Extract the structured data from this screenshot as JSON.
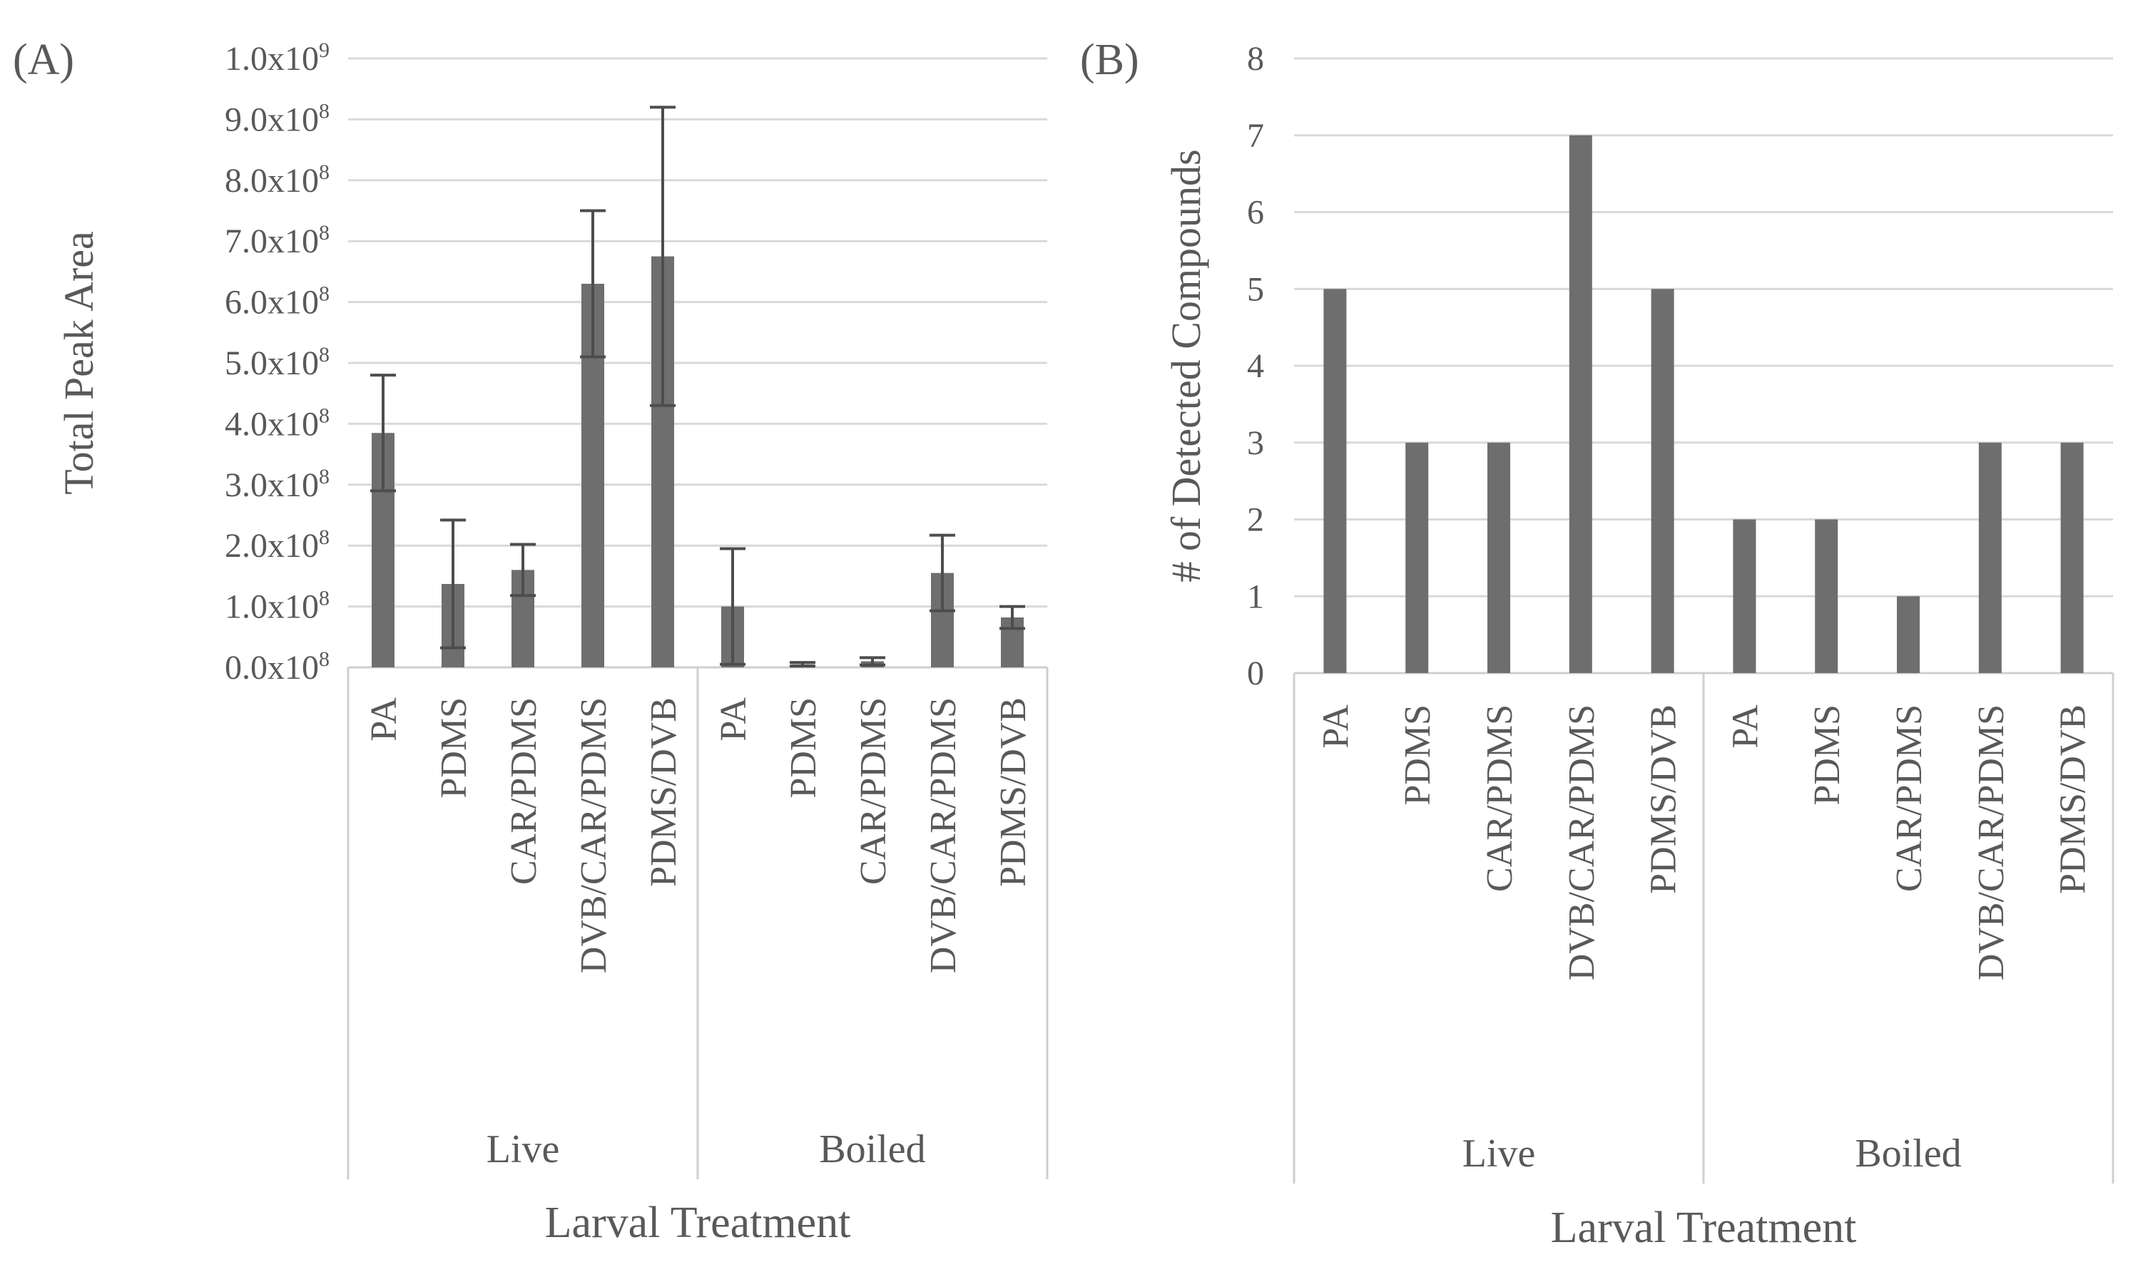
{
  "colors": {
    "bar": "#6e6e6e",
    "error_bar": "#4d4d4d",
    "grid": "#d9d9d9",
    "axis_line": "#cfcfcf",
    "text": "#595959"
  },
  "chart_data": [
    {
      "panel": "(A)",
      "type": "bar",
      "ylabel": "Total Peak Area",
      "xlabel": "Larval Treatment",
      "ylim": [
        0,
        1000000000
      ],
      "yticks": [
        0,
        100000000,
        200000000,
        300000000,
        400000000,
        500000000,
        600000000,
        700000000,
        800000000,
        900000000,
        1000000000
      ],
      "ytick_mantissa": [
        "0.0x10",
        "1.0x10",
        "2.0x10",
        "3.0x10",
        "4.0x10",
        "5.0x10",
        "6.0x10",
        "7.0x10",
        "8.0x10",
        "9.0x10",
        "1.0x10"
      ],
      "ytick_exponent": [
        "8",
        "8",
        "8",
        "8",
        "8",
        "8",
        "8",
        "8",
        "8",
        "8",
        "9"
      ],
      "grid": true,
      "groups": [
        "Live",
        "Boiled"
      ],
      "categories": [
        "PA",
        "PDMS",
        "CAR/PDMS",
        "DVB/CAR/PDMS",
        "PDMS/DVB",
        "PA",
        "PDMS",
        "CAR/PDMS",
        "DVB/CAR/PDMS",
        "PDMS/DVB"
      ],
      "values": [
        385000000,
        137000000,
        160000000,
        630000000,
        675000000,
        100000000,
        5000000,
        10000000,
        155000000,
        82000000
      ],
      "errors": [
        95000000,
        105000000,
        42000000,
        120000000,
        245000000,
        95000000,
        3000000,
        6000000,
        62000000,
        18000000
      ]
    },
    {
      "panel": "(B)",
      "type": "bar",
      "ylabel": "# of Detected Compounds",
      "xlabel": "Larval Treatment",
      "ylim": [
        0,
        8
      ],
      "yticks": [
        0,
        1,
        2,
        3,
        4,
        5,
        6,
        7,
        8
      ],
      "grid": true,
      "groups": [
        "Live",
        "Boiled"
      ],
      "categories": [
        "PA",
        "PDMS",
        "CAR/PDMS",
        "DVB/CAR/PDMS",
        "PDMS/DVB",
        "PA",
        "PDMS",
        "CAR/PDMS",
        "DVB/CAR/PDMS",
        "PDMS/DVB"
      ],
      "values": [
        5,
        3,
        3,
        7,
        5,
        2,
        2,
        1,
        3,
        3
      ]
    }
  ]
}
